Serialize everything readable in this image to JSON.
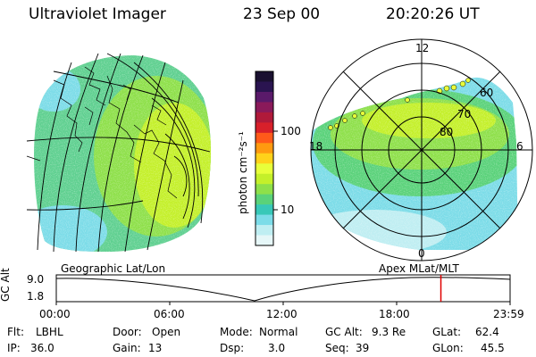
{
  "header": {
    "instrument": "Ultraviolet Imager",
    "date": "23 Sep 00",
    "time": "20:20:26 UT"
  },
  "colorbar": {
    "unit_label": "photon cm⁻²s⁻¹",
    "ticks": [
      "100",
      "10"
    ],
    "colors": [
      "#1a1030",
      "#2a1450",
      "#5a1a6a",
      "#8a1a5a",
      "#b01a3a",
      "#d8202a",
      "#ff5a1a",
      "#ff9a10",
      "#ffd21a",
      "#e8ff3a",
      "#c4f02a",
      "#8ee04a",
      "#5ad27a",
      "#38c8b8",
      "#7cdce8",
      "#bfeef2",
      "#e6f7f8"
    ]
  },
  "left_map": {
    "caption": "Geographic Lat/Lon"
  },
  "polar_map": {
    "caption": "Apex MLat/MLT",
    "mlt_labels": {
      "top": "12",
      "left": "18",
      "right": "6",
      "bottom": "0"
    },
    "lat_labels": [
      "60",
      "70",
      "80"
    ]
  },
  "timeline": {
    "ylabel": "GC Alt",
    "yticks": [
      "9.0",
      "1.8"
    ],
    "xticks": [
      "00:00",
      "06:00",
      "12:00",
      "18:00",
      "23:59"
    ],
    "marker_time_fraction": 0.8475,
    "marker_color": "#e00000"
  },
  "info": {
    "flt_label": "Flt:",
    "flt_value": "LBHL",
    "ip_label": "IP:",
    "ip_value": "36.0",
    "door_label": "Door:",
    "door_value": "Open",
    "gain_label": "Gain:",
    "gain_value": "13",
    "mode_label": "Mode:",
    "mode_value": "Normal",
    "dsp_label": "Dsp:",
    "dsp_value": "3.0",
    "gcalt_label": "GC Alt:",
    "gcalt_value": "9.3 Re",
    "seq_label": "Seq:",
    "seq_value": "39",
    "glat_label": "GLat:",
    "glat_value": "62.4",
    "glon_label": "GLon:",
    "glon_value": "45.5"
  }
}
